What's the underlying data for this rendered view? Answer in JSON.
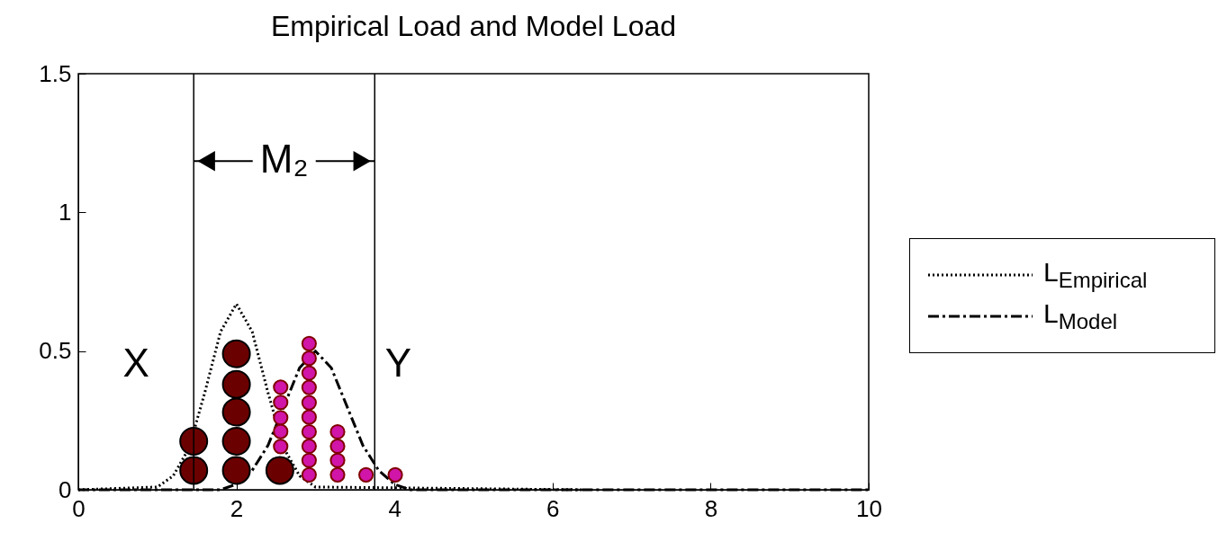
{
  "chart_data": {
    "type": "line",
    "title": "Empirical Load and Model Load",
    "xlim": [
      0,
      10
    ],
    "xticks": [
      0,
      2,
      4,
      6,
      8,
      10
    ],
    "ylim": [
      0,
      1.5
    ],
    "yticks": [
      0,
      0.5,
      1,
      1.5
    ],
    "grid": false,
    "legend": "right",
    "series": [
      {
        "name": "L$_{Empirical}$",
        "color": "#000000",
        "line_style": "dotted",
        "x": [
          0,
          1.0,
          1.2,
          1.4,
          1.6,
          1.8,
          2.0,
          2.2,
          2.4,
          2.6,
          2.8,
          3.0,
          6.4
        ],
        "values": [
          0,
          0.01,
          0.05,
          0.15,
          0.35,
          0.57,
          0.67,
          0.57,
          0.35,
          0.15,
          0.05,
          0.01,
          0
        ]
      },
      {
        "name": "L$_{Model}$",
        "color": "#000000",
        "line_style": "dashed",
        "x": [
          0,
          1.8,
          2.0,
          2.2,
          2.4,
          2.6,
          2.8,
          3.0,
          3.2,
          3.4,
          3.6,
          3.8,
          4.0,
          4.2,
          10
        ],
        "values": [
          0,
          0,
          0.02,
          0.07,
          0.16,
          0.3,
          0.44,
          0.5,
          0.44,
          0.3,
          0.16,
          0.07,
          0.02,
          0,
          0
        ]
      },
      {
        "type": "scatter",
        "color": "#6b0000",
        "marker": "circle",
        "x": [
          1.46,
          1.46,
          2.0,
          2.0,
          2.0,
          2.0,
          2.0,
          2.55
        ],
        "values": [
          0.07,
          0.175,
          0.07,
          0.175,
          0.28,
          0.38,
          0.49,
          0.07
        ]
      },
      {
        "type": "scatter",
        "color": "#d015a8",
        "marker": "circle",
        "x": [
          2.56,
          2.56,
          2.56,
          2.56,
          2.56,
          2.92,
          2.92,
          2.92,
          2.92,
          2.92,
          2.92,
          2.92,
          2.92,
          2.92,
          2.92,
          3.28,
          3.28,
          3.28,
          3.28,
          3.64,
          4.01
        ],
        "values": [
          0.156,
          0.21,
          0.26,
          0.315,
          0.37,
          0.054,
          0.106,
          0.157,
          0.209,
          0.262,
          0.314,
          0.369,
          0.421,
          0.474,
          0.527,
          0.054,
          0.106,
          0.157,
          0.209,
          0.054,
          0.054
        ]
      }
    ],
    "ref_lines": [
      {
        "axis": "x",
        "value": 1.46
      },
      {
        "axis": "x",
        "value": 3.75
      }
    ],
    "annotations": [
      "X",
      "Y",
      "M₂"
    ]
  }
}
